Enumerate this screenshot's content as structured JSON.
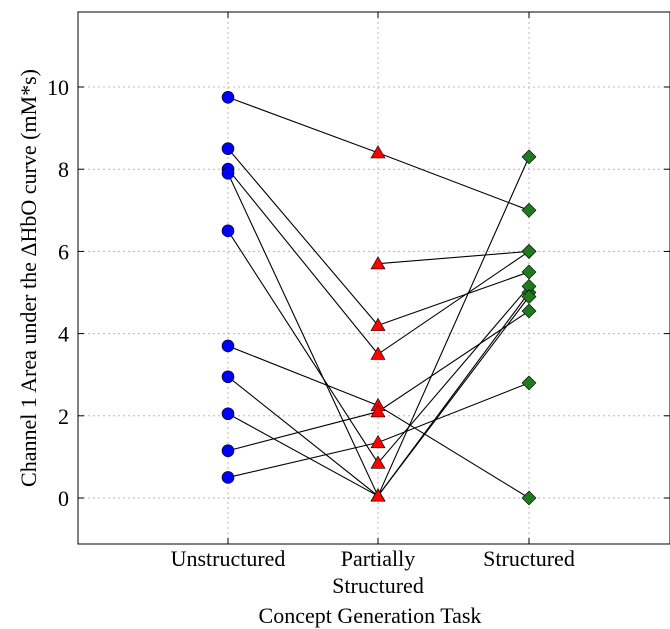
{
  "chart_data": {
    "type": "scatter",
    "categories": [
      "Unstructured",
      "Partially\nStructured",
      "Structured"
    ],
    "xlabel": "Concept Generation Task",
    "ylabel": "Channel 1 Area under the ΔHbO curve (mM*s)",
    "ylim": [
      -1.1,
      11.8
    ],
    "yticks": [
      0,
      2,
      4,
      6,
      8,
      10
    ],
    "grid": true,
    "markers": [
      "circle",
      "triangle",
      "diamond"
    ],
    "colors": [
      "#0000ff",
      "#ff0000",
      "#1f7a1f"
    ],
    "subjects": [
      [
        9.75,
        8.4,
        7.0
      ],
      [
        8.5,
        4.2,
        5.5
      ],
      [
        8.0,
        3.5,
        6.0
      ],
      [
        7.9,
        0.05,
        5.0
      ],
      [
        6.5,
        0.85,
        5.15
      ],
      [
        3.7,
        2.25,
        0.0
      ],
      [
        2.95,
        0.05,
        8.3
      ],
      [
        2.05,
        0.05,
        4.9
      ],
      [
        1.15,
        2.1,
        4.55
      ],
      [
        0.5,
        1.35,
        2.8
      ]
    ],
    "extra_points": [
      [
        1,
        5.7,
        6.0
      ]
    ]
  }
}
